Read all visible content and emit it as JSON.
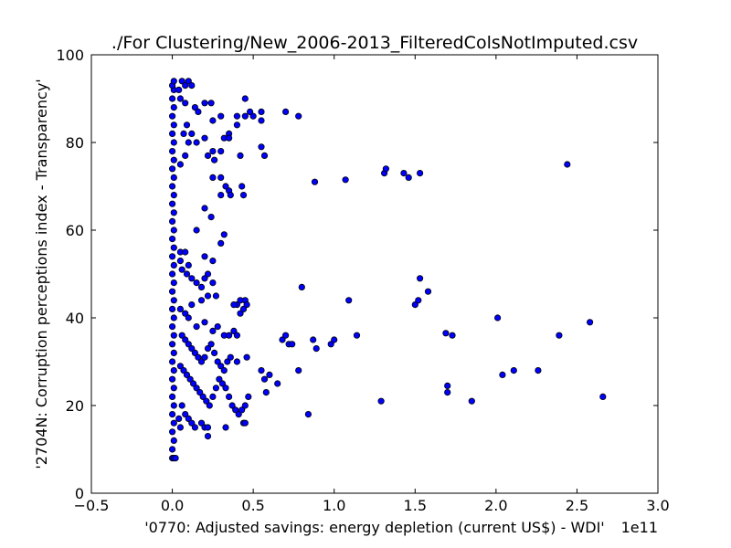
{
  "chart_data": {
    "type": "scatter",
    "title": "./For Clustering/New_2006-2013_FilteredColsNotImputed.csv",
    "xlabel": "'0770: Adjusted savings: energy depletion  (current US$) - WDI'",
    "ylabel": "'2704N: Corruption perceptions index - Transparency'",
    "x_offset_label": "1e11",
    "xlim": [
      -0.5,
      3.0
    ],
    "ylim": [
      0,
      100
    ],
    "x_ticks": [
      "−0.5",
      "0.0",
      "0.5",
      "1.0",
      "1.5",
      "2.0",
      "2.5",
      "3.0"
    ],
    "y_ticks": [
      "0",
      "20",
      "40",
      "60",
      "80",
      "100"
    ],
    "grid": false,
    "marker_color": "#0000ff",
    "marker_edge_color": "#000000",
    "points": [
      [
        0.0,
        8
      ],
      [
        0.01,
        8
      ],
      [
        0.02,
        8
      ],
      [
        0.0,
        10
      ],
      [
        0.01,
        12
      ],
      [
        0.0,
        14
      ],
      [
        0.01,
        16
      ],
      [
        0.0,
        18
      ],
      [
        0.01,
        20
      ],
      [
        0.0,
        22
      ],
      [
        0.01,
        24
      ],
      [
        0.0,
        26
      ],
      [
        0.01,
        28
      ],
      [
        0.0,
        30
      ],
      [
        0.01,
        32
      ],
      [
        0.0,
        34
      ],
      [
        0.01,
        36
      ],
      [
        0.0,
        38
      ],
      [
        0.01,
        40
      ],
      [
        0.0,
        42
      ],
      [
        0.01,
        44
      ],
      [
        0.0,
        46
      ],
      [
        0.01,
        48
      ],
      [
        0.0,
        50
      ],
      [
        0.01,
        52
      ],
      [
        0.0,
        54
      ],
      [
        0.01,
        56
      ],
      [
        0.0,
        58
      ],
      [
        0.01,
        60
      ],
      [
        0.0,
        62
      ],
      [
        0.01,
        64
      ],
      [
        0.0,
        66
      ],
      [
        0.01,
        68
      ],
      [
        0.0,
        70
      ],
      [
        0.01,
        72
      ],
      [
        0.0,
        74
      ],
      [
        0.01,
        76
      ],
      [
        0.0,
        78
      ],
      [
        0.01,
        80
      ],
      [
        0.0,
        82
      ],
      [
        0.01,
        84
      ],
      [
        0.0,
        86
      ],
      [
        0.01,
        88
      ],
      [
        0.0,
        90
      ],
      [
        0.01,
        92
      ],
      [
        0.0,
        93
      ],
      [
        0.01,
        94
      ],
      [
        0.04,
        92
      ],
      [
        0.06,
        94
      ],
      [
        0.08,
        93
      ],
      [
        0.1,
        94
      ],
      [
        0.12,
        93
      ],
      [
        0.05,
        90
      ],
      [
        0.08,
        89
      ],
      [
        0.14,
        88
      ],
      [
        0.16,
        87
      ],
      [
        0.2,
        89
      ],
      [
        0.24,
        89
      ],
      [
        0.25,
        85
      ],
      [
        0.3,
        86
      ],
      [
        0.35,
        82
      ],
      [
        0.4,
        86
      ],
      [
        0.4,
        84
      ],
      [
        0.45,
        90
      ],
      [
        0.45,
        86
      ],
      [
        0.48,
        87
      ],
      [
        0.5,
        86
      ],
      [
        0.55,
        87
      ],
      [
        0.55,
        85
      ],
      [
        0.7,
        87
      ],
      [
        0.78,
        86
      ],
      [
        0.09,
        84
      ],
      [
        0.07,
        82
      ],
      [
        0.1,
        80
      ],
      [
        0.12,
        82
      ],
      [
        0.15,
        80
      ],
      [
        0.2,
        81
      ],
      [
        0.25,
        78
      ],
      [
        0.22,
        77
      ],
      [
        0.3,
        78
      ],
      [
        0.32,
        81
      ],
      [
        0.35,
        81
      ],
      [
        0.42,
        77
      ],
      [
        0.55,
        79
      ],
      [
        0.57,
        77
      ],
      [
        0.08,
        77
      ],
      [
        0.05,
        75
      ],
      [
        0.26,
        76
      ],
      [
        0.3,
        72
      ],
      [
        0.33,
        70
      ],
      [
        0.35,
        69
      ],
      [
        0.36,
        68
      ],
      [
        0.3,
        68
      ],
      [
        0.43,
        70
      ],
      [
        0.44,
        68
      ],
      [
        0.25,
        72
      ],
      [
        0.2,
        65
      ],
      [
        0.24,
        63
      ],
      [
        0.15,
        60
      ],
      [
        0.32,
        59
      ],
      [
        0.3,
        57
      ],
      [
        0.25,
        53
      ],
      [
        0.2,
        54
      ],
      [
        0.05,
        55
      ],
      [
        0.08,
        55
      ],
      [
        0.05,
        53
      ],
      [
        0.1,
        52
      ],
      [
        0.06,
        51
      ],
      [
        0.09,
        50
      ],
      [
        0.12,
        49
      ],
      [
        0.15,
        48
      ],
      [
        0.18,
        47
      ],
      [
        0.2,
        49
      ],
      [
        0.22,
        50
      ],
      [
        0.25,
        48
      ],
      [
        0.27,
        45
      ],
      [
        0.22,
        45
      ],
      [
        0.18,
        44
      ],
      [
        0.12,
        43
      ],
      [
        0.05,
        42
      ],
      [
        0.08,
        41
      ],
      [
        0.1,
        40
      ],
      [
        0.15,
        38
      ],
      [
        0.2,
        39
      ],
      [
        0.25,
        37
      ],
      [
        0.28,
        38
      ],
      [
        0.32,
        36
      ],
      [
        0.35,
        36
      ],
      [
        0.38,
        37
      ],
      [
        0.4,
        36
      ],
      [
        0.4,
        43
      ],
      [
        0.42,
        44
      ],
      [
        0.45,
        44
      ],
      [
        0.46,
        43
      ],
      [
        0.38,
        43
      ],
      [
        0.42,
        41
      ],
      [
        0.44,
        42
      ],
      [
        0.06,
        36
      ],
      [
        0.08,
        35
      ],
      [
        0.1,
        34
      ],
      [
        0.12,
        33
      ],
      [
        0.14,
        32
      ],
      [
        0.16,
        31
      ],
      [
        0.18,
        30
      ],
      [
        0.2,
        31
      ],
      [
        0.22,
        33
      ],
      [
        0.24,
        34
      ],
      [
        0.26,
        32
      ],
      [
        0.28,
        30
      ],
      [
        0.3,
        29
      ],
      [
        0.32,
        28
      ],
      [
        0.34,
        30
      ],
      [
        0.36,
        31
      ],
      [
        0.4,
        30
      ],
      [
        0.46,
        31
      ],
      [
        0.05,
        29
      ],
      [
        0.07,
        28
      ],
      [
        0.09,
        27
      ],
      [
        0.11,
        26
      ],
      [
        0.13,
        25
      ],
      [
        0.15,
        24
      ],
      [
        0.17,
        23
      ],
      [
        0.19,
        22
      ],
      [
        0.21,
        21
      ],
      [
        0.23,
        20
      ],
      [
        0.25,
        22
      ],
      [
        0.27,
        24
      ],
      [
        0.29,
        26
      ],
      [
        0.31,
        25
      ],
      [
        0.33,
        24
      ],
      [
        0.35,
        22
      ],
      [
        0.37,
        20
      ],
      [
        0.39,
        19
      ],
      [
        0.41,
        18
      ],
      [
        0.43,
        19
      ],
      [
        0.45,
        20
      ],
      [
        0.47,
        22
      ],
      [
        0.44,
        16
      ],
      [
        0.45,
        16
      ],
      [
        0.06,
        20
      ],
      [
        0.08,
        18
      ],
      [
        0.1,
        17
      ],
      [
        0.12,
        16
      ],
      [
        0.14,
        15
      ],
      [
        0.18,
        16
      ],
      [
        0.2,
        15
      ],
      [
        0.22,
        15
      ],
      [
        0.22,
        13
      ],
      [
        0.33,
        15
      ],
      [
        0.04,
        17
      ],
      [
        0.05,
        15
      ],
      [
        0.55,
        28
      ],
      [
        0.57,
        26
      ],
      [
        0.58,
        23
      ],
      [
        0.6,
        27
      ],
      [
        0.65,
        25
      ],
      [
        0.68,
        35
      ],
      [
        0.7,
        36
      ],
      [
        0.72,
        34
      ],
      [
        0.74,
        34
      ],
      [
        0.78,
        28
      ],
      [
        0.8,
        47
      ],
      [
        0.84,
        18
      ],
      [
        0.87,
        35
      ],
      [
        0.88,
        71
      ],
      [
        0.89,
        33
      ],
      [
        0.98,
        34
      ],
      [
        1.0,
        35
      ],
      [
        1.07,
        71.5
      ],
      [
        1.09,
        44
      ],
      [
        1.14,
        36
      ],
      [
        1.29,
        21
      ],
      [
        1.31,
        73
      ],
      [
        1.32,
        74
      ],
      [
        1.43,
        73
      ],
      [
        1.46,
        72
      ],
      [
        1.5,
        43
      ],
      [
        1.52,
        44
      ],
      [
        1.53,
        49
      ],
      [
        1.53,
        73
      ],
      [
        1.58,
        46
      ],
      [
        1.69,
        36.5
      ],
      [
        1.7,
        24.5
      ],
      [
        1.7,
        23
      ],
      [
        1.73,
        36
      ],
      [
        1.85,
        21
      ],
      [
        2.01,
        40
      ],
      [
        2.04,
        27
      ],
      [
        2.11,
        28
      ],
      [
        2.26,
        28
      ],
      [
        2.39,
        36
      ],
      [
        2.44,
        75
      ],
      [
        2.58,
        39
      ],
      [
        2.66,
        22
      ]
    ]
  }
}
